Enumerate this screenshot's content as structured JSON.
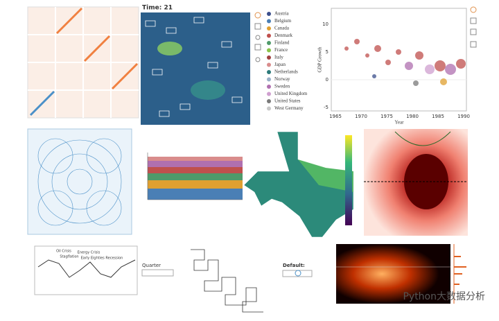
{
  "heatmap": {
    "title": "Time: 21"
  },
  "legend": {
    "items": [
      {
        "label": "Austria",
        "color": "#3b4f8c"
      },
      {
        "label": "Belgium",
        "color": "#4a7fb5"
      },
      {
        "label": "Canada",
        "color": "#e0a030"
      },
      {
        "label": "Denmark",
        "color": "#c0504d"
      },
      {
        "label": "Finland",
        "color": "#4f9a6a"
      },
      {
        "label": "France",
        "color": "#8bc34a"
      },
      {
        "label": "Italy",
        "color": "#a04040"
      },
      {
        "label": "Japan",
        "color": "#d98c8c"
      },
      {
        "label": "Netherlands",
        "color": "#2c7a7a"
      },
      {
        "label": "Norway",
        "color": "#9ab0c8"
      },
      {
        "label": "Sweden",
        "color": "#b070b0"
      },
      {
        "label": "United Kingdom",
        "color": "#d0a0d0"
      },
      {
        "label": "United States",
        "color": "#7a7a7a"
      },
      {
        "label": "West Germany",
        "color": "#c8c8c8"
      }
    ]
  },
  "gdp": {
    "y_label": "GDP Growth",
    "x_label": "Year",
    "xticks": [
      "1965",
      "1970",
      "1975",
      "1980",
      "1985",
      "1990"
    ],
    "yticks": [
      "10",
      "5",
      "0",
      "-5"
    ]
  },
  "timeline": {
    "annotations": [
      "Oil Crisis",
      "Stagflation",
      "Energy Crisis",
      "Early Eighties Recession"
    ]
  },
  "widgets": {
    "quarter": "Quarter",
    "default": "Default:"
  },
  "watermark": "Python大数据分析"
}
